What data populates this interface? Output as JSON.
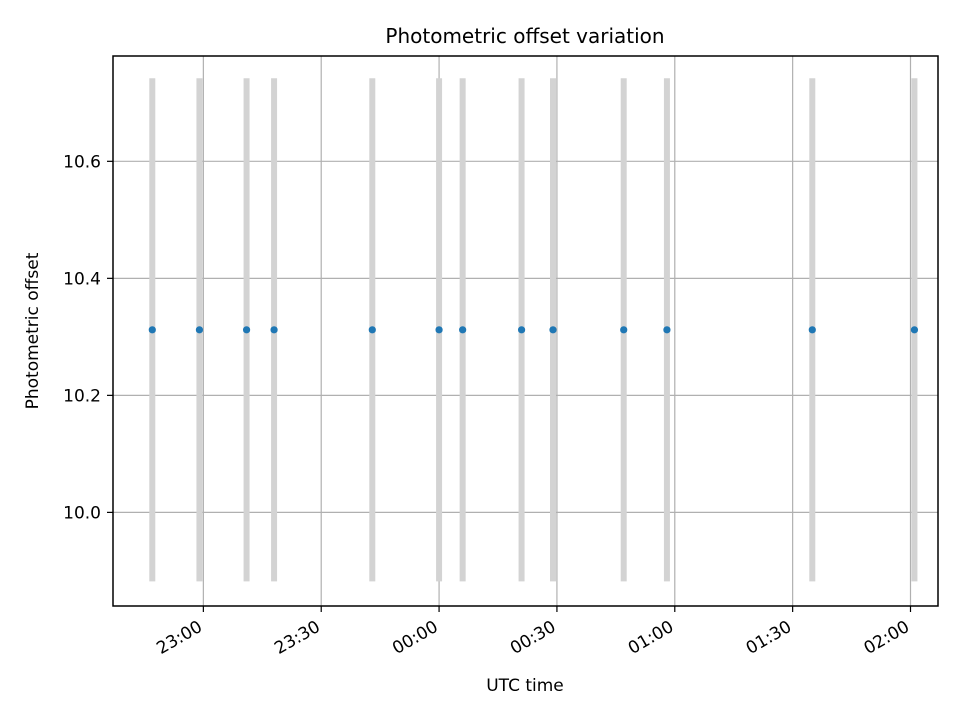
{
  "chart_data": {
    "type": "scatter",
    "title": "Photometric offset variation",
    "xlabel": "UTC time",
    "ylabel": "Photometric offset",
    "x_tick_labels": [
      "23:00",
      "23:30",
      "00:00",
      "00:30",
      "01:00",
      "01:30",
      "02:00"
    ],
    "x_ticks": [
      "22:59",
      "23:29",
      "23:59",
      "00:29",
      "00:59",
      "01:29",
      "01:59"
    ],
    "xlim": [
      "22:36",
      "02:06"
    ],
    "y_tick_labels": [
      "10.0",
      "10.2",
      "10.4",
      "10.6"
    ],
    "y_ticks": [
      10.0,
      10.2,
      10.4,
      10.6
    ],
    "ylim": [
      9.84,
      10.78
    ],
    "grid": true,
    "colors": {
      "point": "#1f77b4",
      "errorbar": "#d3d3d3"
    },
    "points": [
      {
        "x": "22:46",
        "y": 10.312,
        "yerr": 0.43
      },
      {
        "x": "22:58",
        "y": 10.312,
        "yerr": 0.43
      },
      {
        "x": "23:10",
        "y": 10.312,
        "yerr": 0.43
      },
      {
        "x": "23:17",
        "y": 10.312,
        "yerr": 0.43
      },
      {
        "x": "23:42",
        "y": 10.312,
        "yerr": 0.43
      },
      {
        "x": "23:59",
        "y": 10.312,
        "yerr": 0.43
      },
      {
        "x": "00:05",
        "y": 10.312,
        "yerr": 0.43
      },
      {
        "x": "00:20",
        "y": 10.312,
        "yerr": 0.43
      },
      {
        "x": "00:28",
        "y": 10.312,
        "yerr": 0.43
      },
      {
        "x": "00:46",
        "y": 10.312,
        "yerr": 0.43
      },
      {
        "x": "00:57",
        "y": 10.312,
        "yerr": 0.43
      },
      {
        "x": "01:34",
        "y": 10.312,
        "yerr": 0.43
      },
      {
        "x": "02:00",
        "y": 10.312,
        "yerr": 0.43
      }
    ]
  }
}
